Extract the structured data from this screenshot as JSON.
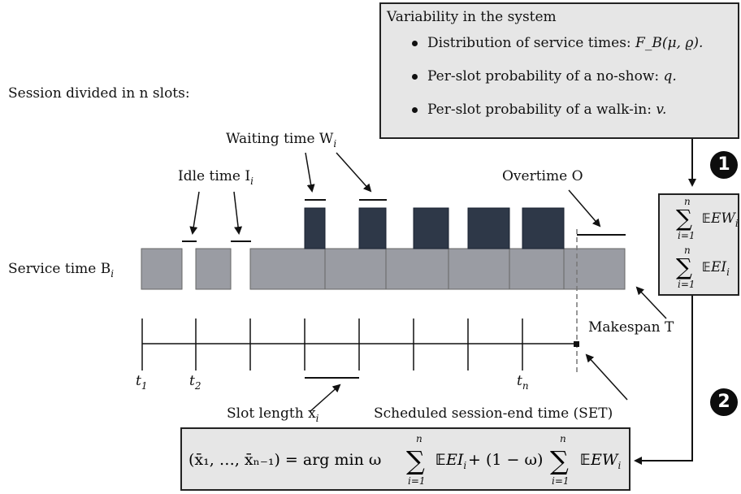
{
  "variability": {
    "title": "Variability in the system",
    "items": [
      {
        "text": "Distribution of service times: ",
        "math": "F_B(μ, ϱ)."
      },
      {
        "text": "Per-slot probability of a no-show: ",
        "math": "q."
      },
      {
        "text": "Per-slot probability of a walk-in: ",
        "math": "v."
      }
    ]
  },
  "labels": {
    "session": "Session divided in n slots:",
    "waiting": "Waiting time W",
    "waiting_sub": "i",
    "idle": "Idle time I",
    "idle_sub": "i",
    "overtime": "Overtime O",
    "service": "Service time B",
    "service_sub": "i",
    "makespan": "Makespan T",
    "slot_length": "Slot length x",
    "slot_sub": "i",
    "set": "Scheduled session-end time (SET)",
    "t1": "t",
    "t1_sub": "1",
    "t2": "t",
    "t2_sub": "2",
    "tn": "t",
    "tn_sub": "n"
  },
  "expectations": {
    "sum_top": "n",
    "sum_bottom": "i=1",
    "term1": "EW",
    "term1_sub": "i",
    "term2": "EI",
    "term2_sub": "i"
  },
  "optimization": {
    "lhs": "(x̄₁, …, x̄ₙ₋₁) = arg min ω",
    "mid": "EI",
    "mid_sub": "i",
    "plus": "+ (1 − ω)",
    "end": "EW",
    "end_sub": "i",
    "sum_top": "n",
    "sum_bottom": "i=1"
  },
  "steps": {
    "one": "1",
    "two": "2"
  },
  "colors": {
    "service": "#9a9ca3",
    "waiting": "#2e3848",
    "box": "#e6e6e6"
  }
}
